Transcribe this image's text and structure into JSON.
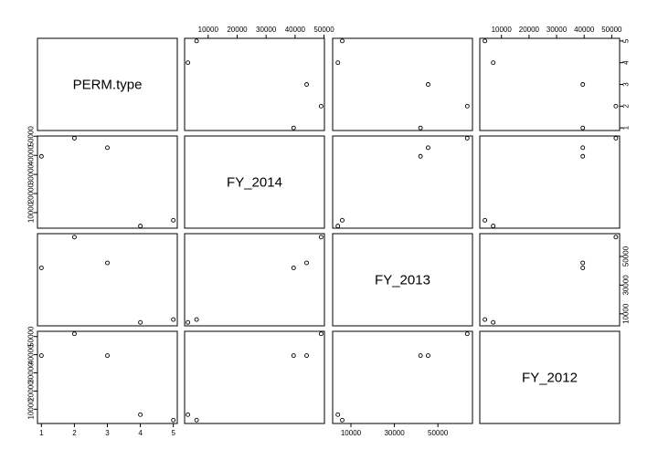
{
  "chart_data": {
    "type": "scatter",
    "subtype": "scatterplot-matrix",
    "variables": [
      "PERM.type",
      "FY_2014",
      "FY_2013",
      "FY_2012"
    ],
    "values": {
      "PERM.type": [
        1,
        2,
        3,
        4,
        5
      ],
      "FY_2014": [
        39500,
        49000,
        44000,
        3000,
        6000
      ],
      "FY_2013": [
        42000,
        63500,
        45500,
        4000,
        6000
      ],
      "FY_2012": [
        39500,
        51500,
        39500,
        7000,
        4000
      ]
    },
    "axes": {
      "PERM.type": {
        "ticks": [
          1,
          2,
          3,
          4,
          5
        ],
        "tick_labels": [
          "1",
          "2",
          "3",
          "4",
          "5"
        ],
        "range": [
          0.88,
          5.12
        ]
      },
      "FY_2014": {
        "ticks": [
          10000,
          20000,
          30000,
          40000,
          50000
        ],
        "tick_labels": [
          "10000",
          "20000",
          "30000",
          "40000",
          "50000"
        ],
        "range": [
          1860,
          50140
        ]
      },
      "FY_2013": {
        "ticks": [
          10000,
          30000,
          50000
        ],
        "tick_labels": [
          "10000",
          "30000",
          "50000"
        ],
        "range": [
          1600,
          65900
        ]
      },
      "FY_2012": {
        "ticks": [
          10000,
          20000,
          30000,
          40000,
          50000
        ],
        "tick_labels": [
          "10000",
          "20000",
          "30000",
          "40000",
          "50000"
        ],
        "range": [
          2140,
          52860
        ]
      }
    },
    "grid": false,
    "legend": "none"
  }
}
